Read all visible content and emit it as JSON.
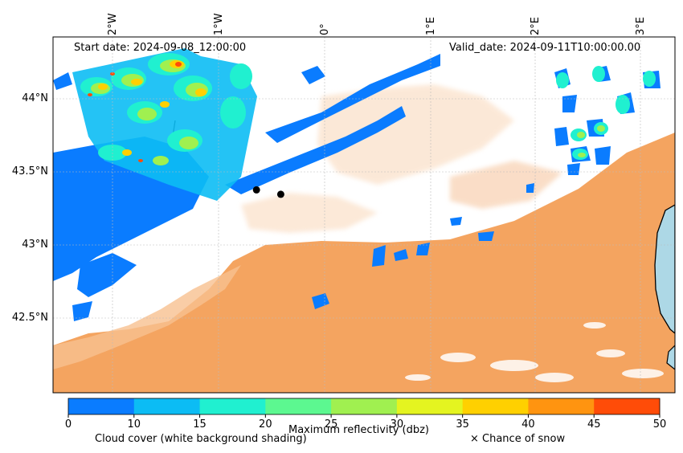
{
  "map": {
    "start_label": "Start date: 2024-09-08_12:00:00",
    "valid_label": "Valid_date: 2024-09-11T10:00:00.00",
    "lon_labels": [
      "2°W",
      "1°W",
      "0°",
      "1°E",
      "2°E",
      "3°E"
    ],
    "lat_labels": [
      "44°N",
      "43.5°N",
      "43°N",
      "42.5°N"
    ],
    "lon_extent": [
      -2.55,
      3.35
    ],
    "lat_extent": [
      42.0,
      44.42
    ],
    "points": [
      {
        "lon": -0.62,
        "lat": 43.38
      },
      {
        "lon": -0.39,
        "lat": 43.35
      }
    ]
  },
  "colorbar": {
    "ticks": [
      "0",
      "10",
      "15",
      "20",
      "25",
      "30",
      "35",
      "40",
      "45",
      "50"
    ],
    "colors": [
      "#0a7cff",
      "#0cbcf4",
      "#20f0d0",
      "#5cf890",
      "#a0f050",
      "#e4f420",
      "#ffd000",
      "#ff9410",
      "#ff4c08"
    ],
    "title": "Maximum reflectivity (dbz)"
  },
  "legend": {
    "cloud_label": "Cloud cover (white background shading)",
    "snow_label": "× Chance of snow"
  },
  "colors": {
    "cloud": "#f4a460",
    "sea": "#add8e6",
    "rain_base": "#0a7cff"
  }
}
